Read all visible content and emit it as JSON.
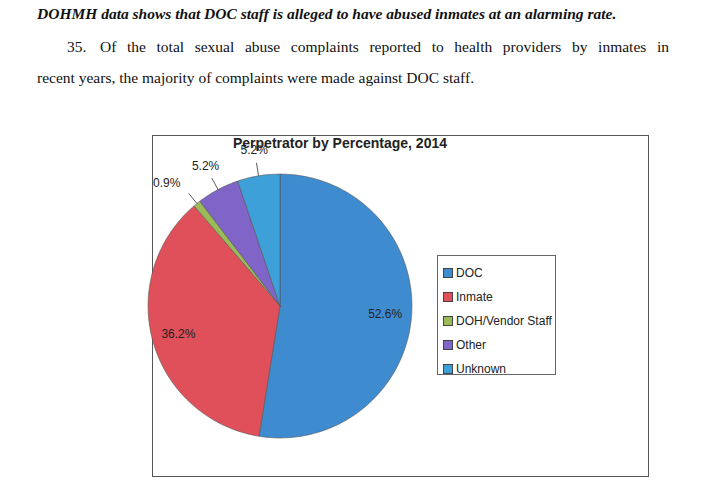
{
  "heading": "DOHMH data shows that DOC staff is alleged to have abused inmates at an alarming rate.",
  "paragraph": {
    "number": "35.",
    "lines": [
      "Of the total sexual abuse complaints reported to health providers by inmates in",
      "recent years, the majority of complaints were made against DOC staff."
    ]
  },
  "chart_data": {
    "type": "pie",
    "title": "Perpetrator by Percentage, 2014",
    "categories": [
      "DOC",
      "Inmate",
      "DOH/Vendor Staff",
      "Other",
      "Unknown"
    ],
    "values": [
      52.6,
      36.2,
      0.9,
      5.2,
      5.2
    ],
    "value_labels": [
      "52.6%",
      "36.2%",
      "0.9%",
      "5.2%",
      "5.2%"
    ],
    "colors": [
      "#3f8bd0",
      "#e0505a",
      "#9bbb59",
      "#8064c8",
      "#3ea0d8"
    ],
    "data_labels": true,
    "legend": "right"
  }
}
